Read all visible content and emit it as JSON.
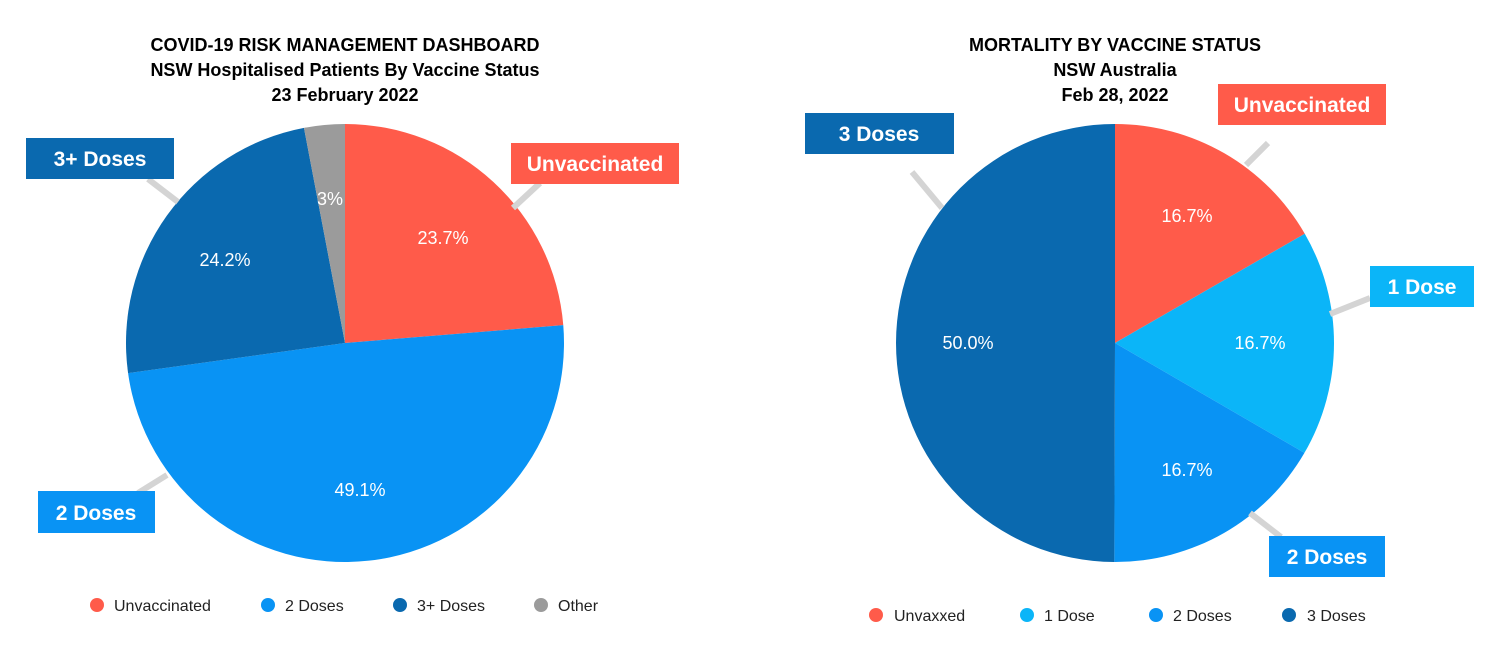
{
  "colors": {
    "red": "#FF5B4A",
    "sky": "#0BB5F8",
    "blue": "#0993F4",
    "navy": "#0A69AF",
    "gray": "#9B9B9B",
    "leader": "#D4D4D4"
  },
  "chart_data": [
    {
      "type": "pie",
      "title": "COVID-19 RISK MANAGEMENT DASHBOARD",
      "subtitle": "NSW Hospitalised Patients By Vaccine Status",
      "date": "23 February 2022",
      "slices": [
        {
          "name": "Unvaccinated",
          "value": 23.7,
          "label": "23.7%",
          "callout": "Unvaccinated",
          "color": "#FF5B4A"
        },
        {
          "name": "2 Doses",
          "value": 49.1,
          "label": "49.1%",
          "callout": "2 Doses",
          "color": "#0993F4"
        },
        {
          "name": "3+ Doses",
          "value": 24.2,
          "label": "24.2%",
          "callout": "3+ Doses",
          "color": "#0A69AF"
        },
        {
          "name": "Other",
          "value": 3.0,
          "label": "3%",
          "callout": "",
          "color": "#9B9B9B"
        }
      ],
      "legend": [
        "Unvaccinated",
        "2 Doses",
        "3+ Doses",
        "Other"
      ],
      "legend_position": "bottom"
    },
    {
      "type": "pie",
      "title": "MORTALITY BY VACCINE STATUS",
      "subtitle": "NSW Australia",
      "date": "Feb 28, 2022",
      "slices": [
        {
          "name": "Unvaxxed",
          "value": 16.7,
          "label": "16.7%",
          "callout": "Unvaccinated",
          "color": "#FF5B4A"
        },
        {
          "name": "1 Dose",
          "value": 16.7,
          "label": "16.7%",
          "callout": "1 Dose",
          "color": "#0BB5F8"
        },
        {
          "name": "2 Doses",
          "value": 16.7,
          "label": "16.7%",
          "callout": "2 Doses",
          "color": "#0993F4"
        },
        {
          "name": "3 Doses",
          "value": 50.0,
          "label": "50.0%",
          "callout": "3 Doses",
          "color": "#0A69AF"
        }
      ],
      "legend": [
        "Unvaxxed",
        "1 Dose",
        "2 Doses",
        "3 Doses"
      ],
      "legend_position": "bottom"
    }
  ]
}
